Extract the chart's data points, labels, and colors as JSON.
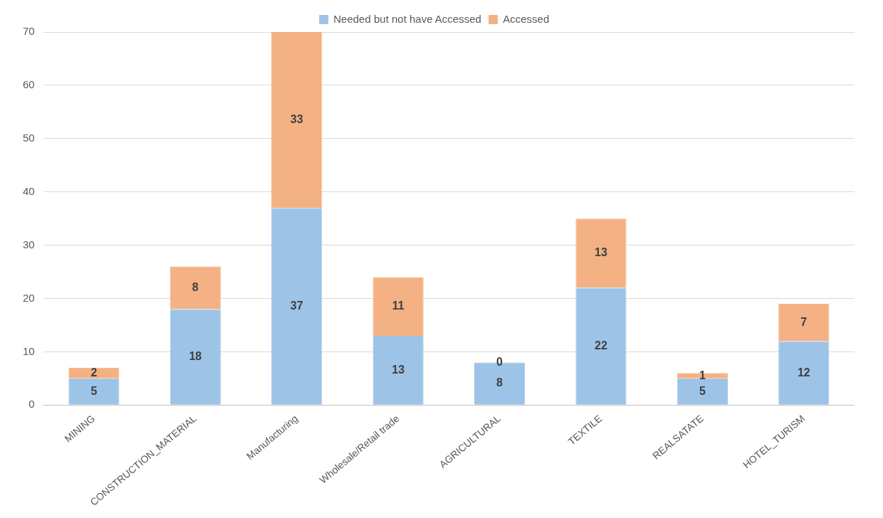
{
  "chart_data": {
    "type": "bar",
    "stacked": true,
    "categories": [
      "MINING",
      "CONSTRUCTION_MATERIAL",
      "Manufacturing",
      "Wholesale/Retail trade",
      "AGRICULTURAL",
      "TEXTILE",
      "REALSATATE",
      "HOTEL_TURISM"
    ],
    "series": [
      {
        "name": "Needed but not have Accessed",
        "color": "#9dc3e6",
        "values": [
          5,
          18,
          37,
          13,
          8,
          22,
          5,
          12
        ]
      },
      {
        "name": "Accessed",
        "color": "#f4b183",
        "values": [
          2,
          8,
          33,
          11,
          0,
          13,
          1,
          7
        ]
      }
    ],
    "ylim": [
      0,
      70
    ],
    "yticks": [
      0,
      10,
      20,
      30,
      40,
      50,
      60,
      70
    ],
    "grid": "y",
    "legend": "top",
    "data_labels": true
  }
}
